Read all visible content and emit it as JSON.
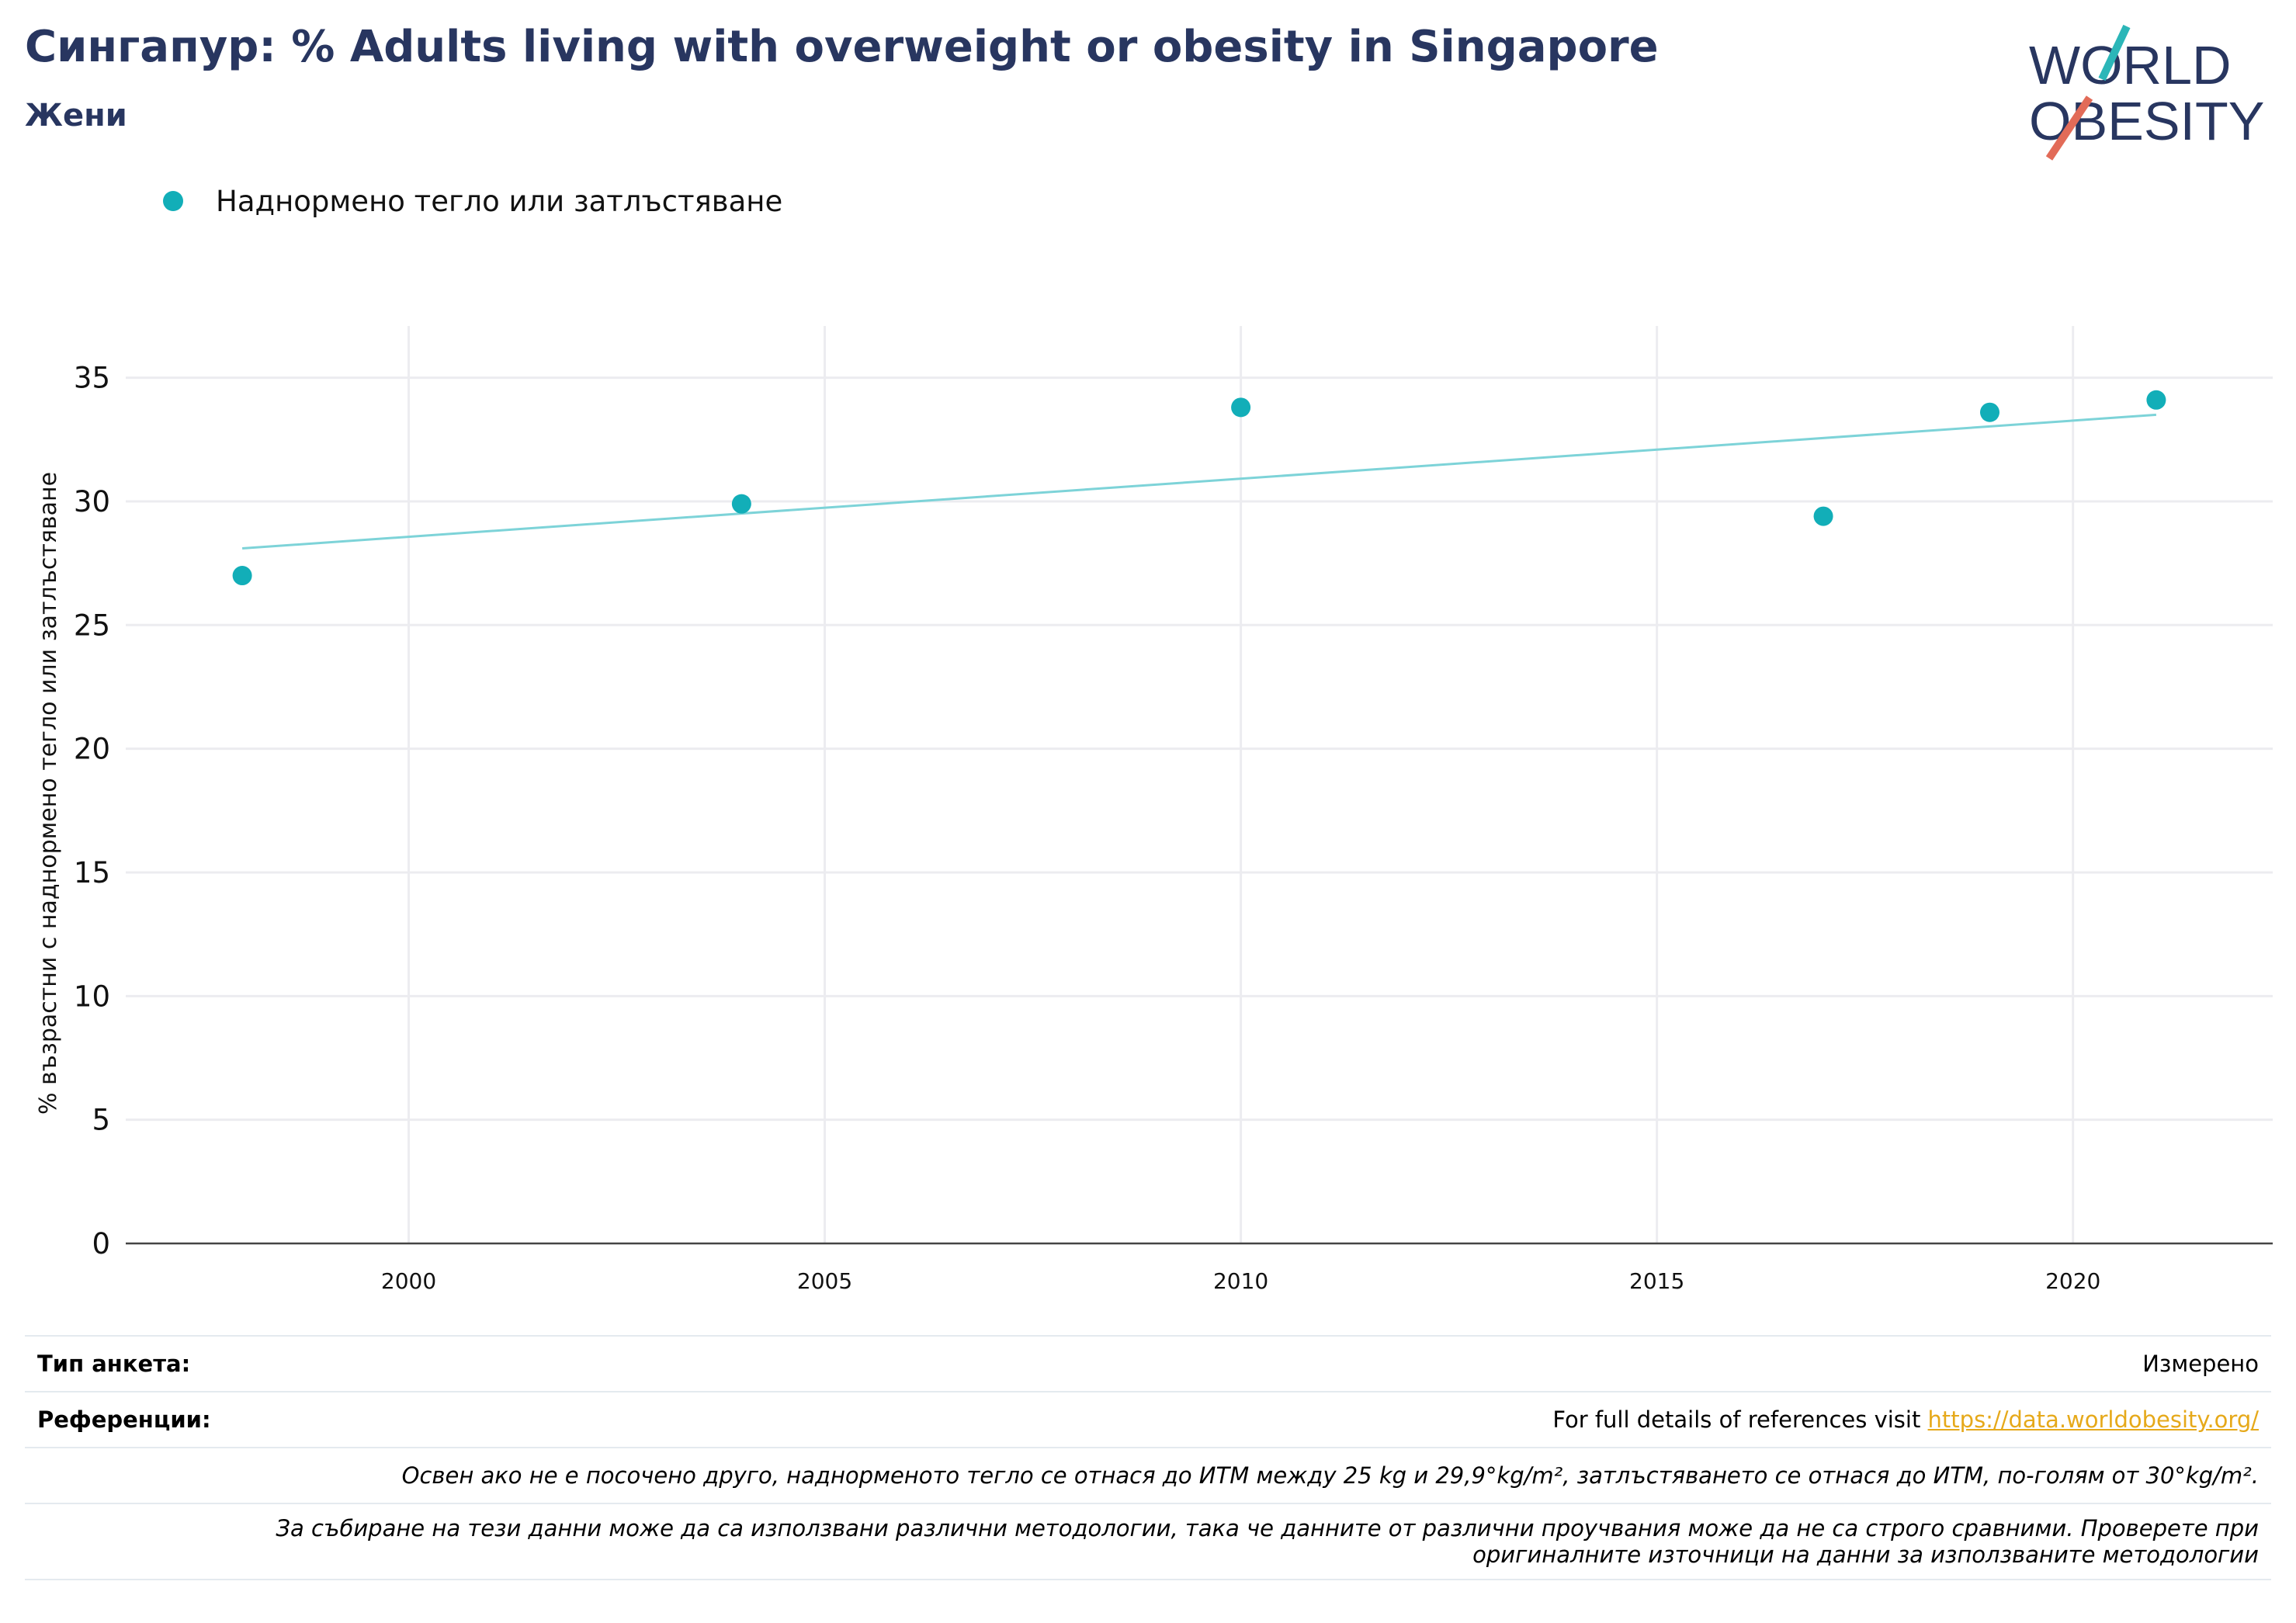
{
  "header": {
    "title": "Сингапур: % Adults living with overweight or obesity in Singapore",
    "subtitle": "Жени"
  },
  "logo": {
    "line1": "WORLD",
    "line2": "OBESITY"
  },
  "colors": {
    "title": "#283660",
    "point": "#12aeb8",
    "trend": "#7dd3d8",
    "grid": "#ececf0",
    "link": "#e6a91a",
    "logo_teal": "#2bb6b8",
    "logo_red": "#e26b58"
  },
  "chart_data": {
    "type": "scatter",
    "title": "Сингапур: % Adults living with overweight or obesity in Singapore",
    "subtitle": "Жени",
    "ylabel": "% възрастни с наднормено тегло или затлъстяване",
    "xlabel": "",
    "xlim": [
      1996.6,
      2022.4
    ],
    "ylim": [
      0,
      36.4
    ],
    "xticks": [
      2000,
      2005,
      2010,
      2015,
      2020
    ],
    "yticks": [
      0,
      5,
      10,
      15,
      20,
      25,
      30,
      35
    ],
    "grid": true,
    "legend_position": "top-left",
    "series": [
      {
        "name": "Наднормено тегло или затлъстяване",
        "x": [
          1998,
          2004,
          2010,
          2017,
          2019,
          2021
        ],
        "y": [
          27.0,
          29.9,
          33.8,
          29.4,
          33.6,
          34.1
        ]
      }
    ],
    "trendline": {
      "x": [
        1998,
        2021
      ],
      "y": [
        28.1,
        33.5
      ]
    }
  },
  "footer": {
    "survey_label": "Тип анкета:",
    "survey_value": "Измерено",
    "refs_label": "Референции:",
    "refs_text": "For full details of references visit ",
    "refs_link": "https://data.worldobesity.org/",
    "note1": "Освен ако не е посочено друго, наднорменото тегло се отнася до ИТМ между 25 kg и 29,9°kg/m², затлъстяването се отнася до ИТМ, по-голям от 30°kg/m².",
    "note2": "За събиране на тези данни може да са използвани различни методологии, така че данните от различни проучвания може да не са строго сравними. Проверете при оригиналните източници на данни за използваните методологии"
  }
}
